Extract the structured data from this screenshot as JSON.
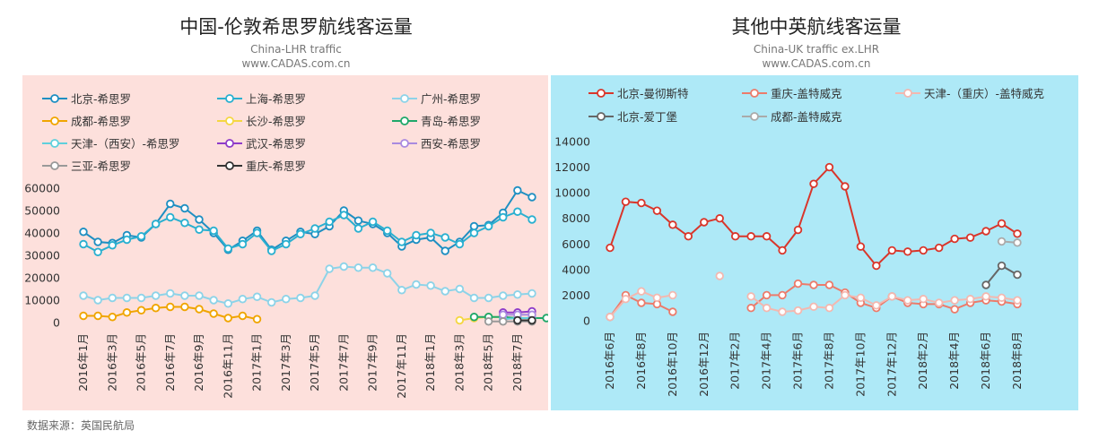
{
  "source_label": "数据来源：英国民航局",
  "chart_data": [
    {
      "type": "line",
      "title": "中国-伦敦希思罗航线客运量",
      "subtitle": "China-LHR traffic",
      "site": "www.CADAS.com.cn",
      "xlabel": "",
      "ylabel": "",
      "ylim": [
        0,
        60000
      ],
      "yticks": [
        0,
        10000,
        20000,
        30000,
        40000,
        50000,
        60000
      ],
      "background": "#fde0dc",
      "tick_labels": [
        "2016年1月",
        "2016年3月",
        "2016年5月",
        "2016年7月",
        "2016年9月",
        "2016年11月",
        "2017年1月",
        "2017年3月",
        "2017年5月",
        "2017年7月",
        "2017年9月",
        "2017年11月",
        "2018年1月",
        "2018年3月",
        "2018年5月",
        "2018年7月"
      ],
      "x_months": 32,
      "series": [
        {
          "name": "北京-希思罗",
          "color": "#1e8fc2",
          "start": 0,
          "values": [
            40500,
            36000,
            35500,
            39000,
            38000,
            44000,
            53000,
            51000,
            46000,
            40000,
            32500,
            36500,
            41000,
            32500,
            36500,
            40500,
            39500,
            43000,
            50000,
            45500,
            44000,
            40000,
            34000,
            37000,
            38000,
            32000,
            36000,
            43000,
            43500,
            49000,
            59000,
            56000
          ]
        },
        {
          "name": "上海-希思罗",
          "color": "#2ab0d0",
          "start": 0,
          "values": [
            35000,
            31500,
            34500,
            37000,
            38500,
            44000,
            47000,
            44500,
            41500,
            41000,
            33000,
            35000,
            40000,
            32000,
            35000,
            39500,
            42000,
            45000,
            48000,
            42000,
            45000,
            41000,
            36000,
            39000,
            40000,
            38000,
            35000,
            40000,
            43000,
            47000,
            49500,
            46000
          ]
        },
        {
          "name": "广州-希思罗",
          "color": "#8dd3e8",
          "start": 0,
          "values": [
            12000,
            10000,
            11000,
            11000,
            11000,
            12000,
            13000,
            12000,
            12000,
            10000,
            8500,
            10500,
            11500,
            9000,
            10500,
            11000,
            12000,
            24000,
            25000,
            24500,
            24500,
            22000,
            14500,
            17000,
            16500,
            14000,
            15000,
            11000,
            11000,
            12000,
            12500,
            13000
          ]
        },
        {
          "name": "成都-希思罗",
          "color": "#f0a500",
          "start": 0,
          "values": [
            3000,
            3000,
            2500,
            4500,
            5500,
            6500,
            7000,
            7000,
            6000,
            4000,
            2000,
            3000,
            1500
          ]
        },
        {
          "name": "长沙-希思罗",
          "color": "#f5d742",
          "start": 26,
          "values": [
            1000,
            2000,
            2500,
            2500
          ]
        },
        {
          "name": "青岛-希思罗",
          "color": "#1fa86a",
          "start": 27,
          "values": [
            2500,
            2500,
            2500,
            2000,
            2000,
            2000
          ]
        },
        {
          "name": "天津-（西安）-希思罗",
          "color": "#5fd0dc",
          "start": 29,
          "values": [
            1500,
            2000,
            2000
          ]
        },
        {
          "name": "武汉-希思罗",
          "color": "#8e3cc9",
          "start": 29,
          "values": [
            4500,
            4500,
            5000
          ]
        },
        {
          "name": "西安-希思罗",
          "color": "#a98ae0",
          "start": 29,
          "values": [
            3500,
            3500,
            3500
          ]
        },
        {
          "name": "三亚-希思罗",
          "color": "#999999",
          "start": 28,
          "values": [
            500,
            500,
            500,
            500
          ]
        },
        {
          "name": "重庆-希思罗",
          "color": "#333333",
          "start": 30,
          "values": [
            1000,
            1000
          ]
        }
      ]
    },
    {
      "type": "line",
      "title": "其他中英航线客运量",
      "subtitle": "China-UK traffic ex.LHR",
      "site": "www.CADAS.com.cn",
      "xlabel": "",
      "ylabel": "",
      "ylim": [
        0,
        14000
      ],
      "yticks": [
        0,
        2000,
        4000,
        6000,
        8000,
        10000,
        12000,
        14000
      ],
      "background": "#aee9f7",
      "tick_labels": [
        "2016年6月",
        "2016年8月",
        "2016年10月",
        "2016年12月",
        "2017年2月",
        "2017年4月",
        "2017年6月",
        "2017年8月",
        "2017年10月",
        "2017年12月",
        "2018年2月",
        "2018年4月",
        "2018年6月",
        "2018年8月"
      ],
      "x_months": 27,
      "series": [
        {
          "name": "北京-曼彻斯特",
          "color": "#d9362b",
          "start": 0,
          "values": [
            5700,
            9300,
            9200,
            8600,
            7500,
            6600,
            7700,
            8000,
            6600,
            6600,
            6600,
            5500,
            7100,
            10700,
            12000,
            10500,
            5800,
            4300,
            5500,
            5400,
            5500,
            5700,
            6400,
            6500,
            7000,
            7600,
            6800
          ]
        },
        {
          "name": "重庆-盖特威克",
          "color": "#ec7b6b",
          "start": 0,
          "values": [
            300,
            2000,
            1400,
            1300,
            700,
            null,
            null,
            null,
            null,
            1000,
            2000,
            2000,
            2900,
            2800,
            2800,
            2200,
            1400,
            1000,
            1900,
            1400,
            1300,
            1300,
            900,
            1400,
            1600,
            1500,
            1300
          ]
        },
        {
          "name": "天津-（重庆）-盖特威克",
          "color": "#f3b8b0",
          "start": 0,
          "values": [
            300,
            1700,
            2300,
            1800,
            2000,
            null,
            null,
            3500,
            null,
            1900,
            1000,
            700,
            800,
            1100,
            1000,
            2000,
            1800,
            1200,
            1900,
            1600,
            1700,
            1400,
            1600,
            1700,
            1900,
            1800,
            1600
          ]
        },
        {
          "name": "北京-爱丁堡",
          "color": "#666666",
          "start": 24,
          "values": [
            2800,
            4300,
            3600
          ]
        },
        {
          "name": "成都-盖特威克",
          "color": "#aaaaaa",
          "start": 25,
          "values": [
            6200,
            6100
          ]
        }
      ]
    }
  ]
}
